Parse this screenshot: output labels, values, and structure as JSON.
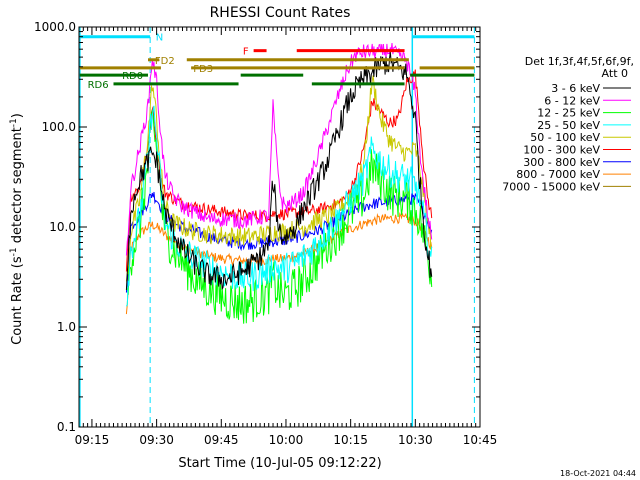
{
  "chart_data": {
    "type": "line",
    "title": "RHESSI Count Rates",
    "xlabel": "Start Time (10-Jul-05 09:12:22)",
    "ylabel_main": "Count Rate (s",
    "ylabel_sup1": "-1",
    "ylabel_mid": " detector segment",
    "ylabel_sup2": "-1",
    "ylabel_end": ")",
    "x_range_min": [
      0,
      93
    ],
    "y_scale": "log",
    "y_range": [
      0.1,
      1000
    ],
    "x_ticks": [
      {
        "min": 3,
        "label": "09:15"
      },
      {
        "min": 18,
        "label": "09:30"
      },
      {
        "min": 33,
        "label": "09:45"
      },
      {
        "min": 48,
        "label": "10:00"
      },
      {
        "min": 63,
        "label": "10:15"
      },
      {
        "min": 78,
        "label": "10:30"
      },
      {
        "min": 93,
        "label": "10:45"
      }
    ],
    "y_ticks": [
      {
        "val": 0.1,
        "label": "0.1"
      },
      {
        "val": 1,
        "label": "1.0"
      },
      {
        "val": 10,
        "label": "10.0"
      },
      {
        "val": 100,
        "label": "100.0"
      },
      {
        "val": 1000,
        "label": "1000.0"
      }
    ],
    "legend_title_1": "Det 1f,3f,4f,5f,6f,9f,",
    "legend_title_2": "Att 0",
    "legend_placement": "right",
    "series": [
      {
        "name": "3 - 6 keV",
        "color": "#000000",
        "times": [
          11,
          12,
          14,
          16,
          17,
          18,
          19,
          20,
          22,
          24,
          27,
          30,
          34,
          38,
          40,
          42,
          44,
          45,
          46,
          47,
          48,
          50,
          52,
          54,
          56,
          58,
          60,
          62,
          64,
          66,
          68,
          70,
          72,
          74,
          76,
          78,
          79,
          80,
          81,
          82
        ],
        "values": [
          2,
          15,
          30,
          45,
          55,
          45,
          25,
          14,
          9,
          6,
          4.2,
          3.3,
          3.0,
          3.6,
          4.2,
          5,
          6.5,
          30,
          12,
          8,
          8,
          10,
          15,
          22,
          32,
          50,
          90,
          160,
          240,
          300,
          350,
          420,
          440,
          390,
          340,
          120,
          30,
          10,
          5,
          3
        ]
      },
      {
        "name": "6 - 12 keV",
        "color": "#ff00ff",
        "times": [
          11,
          12,
          14,
          16,
          17,
          18,
          19,
          20,
          22,
          24,
          27,
          30,
          34,
          38,
          40,
          42,
          44,
          45,
          46,
          47,
          48,
          50,
          52,
          54,
          56,
          58,
          60,
          62,
          64,
          66,
          68,
          70,
          72,
          74,
          76,
          78,
          79,
          80,
          81,
          82
        ],
        "values": [
          5,
          24,
          60,
          160,
          500,
          280,
          80,
          32,
          20,
          16,
          14,
          12,
          12,
          11.5,
          12,
          12.5,
          13,
          160,
          40,
          18,
          16,
          18,
          22,
          35,
          60,
          110,
          200,
          350,
          520,
          560,
          570,
          560,
          600,
          520,
          460,
          220,
          60,
          25,
          12,
          7
        ]
      },
      {
        "name": "12 - 25 keV",
        "color": "#00ff00",
        "times": [
          11,
          12,
          14,
          16,
          17,
          18,
          19,
          20,
          22,
          24,
          27,
          30,
          34,
          38,
          40,
          42,
          44,
          45,
          46,
          47,
          48,
          50,
          52,
          54,
          56,
          58,
          60,
          62,
          64,
          66,
          68,
          70,
          72,
          74,
          76,
          78,
          79,
          80,
          81,
          82
        ],
        "values": [
          1.5,
          5,
          10,
          40,
          120,
          60,
          20,
          9,
          6,
          4.5,
          3,
          2.4,
          1.9,
          1.7,
          1.8,
          2,
          2.2,
          3,
          2.3,
          2.1,
          2.1,
          2.4,
          2.9,
          3.8,
          5.2,
          7,
          9,
          12,
          16,
          20,
          40,
          30,
          22,
          20,
          19,
          15,
          12,
          8,
          5,
          3
        ]
      },
      {
        "name": "25 - 50 keV",
        "color": "#00ffff",
        "times": [
          11,
          12,
          14,
          16,
          17,
          18,
          19,
          20,
          22,
          24,
          27,
          30,
          34,
          38,
          40,
          42,
          44,
          45,
          46,
          47,
          48,
          50,
          52,
          54,
          56,
          58,
          60,
          62,
          64,
          66,
          68,
          70,
          72,
          74,
          76,
          78,
          79,
          80,
          81,
          82
        ],
        "values": [
          1.8,
          6,
          12,
          50,
          170,
          80,
          25,
          11,
          7.5,
          6,
          4.8,
          4,
          3.4,
          3.1,
          3.2,
          3.4,
          3.7,
          4.2,
          3.9,
          3.8,
          3.9,
          4.3,
          5,
          6,
          7.5,
          9.5,
          12,
          16,
          22,
          30,
          60,
          45,
          36,
          32,
          30,
          26,
          20,
          12,
          7,
          4
        ]
      },
      {
        "name": "50 - 100 keV",
        "color": "#c8c800",
        "times": [
          11,
          12,
          14,
          16,
          17,
          18,
          19,
          20,
          22,
          24,
          27,
          30,
          34,
          38,
          40,
          42,
          44,
          45,
          46,
          47,
          48,
          50,
          52,
          54,
          56,
          58,
          60,
          62,
          64,
          66,
          68,
          70,
          72,
          74,
          76,
          78,
          79,
          80,
          81,
          82
        ],
        "values": [
          2.5,
          9,
          18,
          80,
          280,
          120,
          35,
          16,
          11,
          10,
          9,
          8.5,
          8.2,
          8,
          8,
          8.3,
          8.6,
          9,
          9,
          9,
          9,
          9.5,
          10,
          11,
          12,
          13,
          15,
          18,
          25,
          40,
          300,
          120,
          75,
          60,
          55,
          60,
          40,
          20,
          10,
          6
        ]
      },
      {
        "name": "100 - 300 keV",
        "color": "#ff0000",
        "times": [
          11,
          12,
          14,
          16,
          17,
          18,
          19,
          20,
          22,
          24,
          27,
          30,
          34,
          38,
          40,
          42,
          44,
          45,
          46,
          47,
          48,
          50,
          52,
          54,
          56,
          58,
          60,
          62,
          64,
          66,
          68,
          70,
          72,
          74,
          76,
          78,
          79,
          80,
          81,
          82
        ],
        "values": [
          4,
          20,
          25,
          60,
          170,
          70,
          30,
          22,
          19,
          17,
          16,
          15,
          14,
          13,
          13,
          13,
          13,
          13.5,
          13.5,
          13.5,
          13.5,
          14,
          14,
          14.5,
          15,
          16,
          17,
          20,
          30,
          60,
          180,
          140,
          110,
          120,
          280,
          340,
          120,
          40,
          18,
          12
        ]
      },
      {
        "name": "300 - 800 keV",
        "color": "#0000ff",
        "times": [
          11,
          12,
          14,
          16,
          17,
          18,
          19,
          20,
          22,
          24,
          27,
          30,
          34,
          38,
          40,
          42,
          44,
          45,
          46,
          47,
          48,
          50,
          52,
          54,
          56,
          58,
          60,
          62,
          64,
          66,
          68,
          70,
          72,
          74,
          76,
          78,
          79,
          80,
          81,
          82
        ],
        "values": [
          2,
          10,
          13,
          18,
          22,
          19,
          16,
          13,
          11,
          10,
          9,
          8,
          7.2,
          6.8,
          6.8,
          7,
          7,
          7.2,
          7.2,
          7.3,
          7.4,
          7.8,
          8.2,
          8.8,
          9.5,
          10.5,
          12,
          13,
          15,
          16,
          17,
          17.5,
          18,
          18.5,
          19,
          19,
          17,
          14,
          11,
          8
        ]
      },
      {
        "name": "800 - 7000 keV",
        "color": "#ff8000",
        "times": [
          11,
          12,
          14,
          16,
          17,
          18,
          19,
          20,
          22,
          24,
          27,
          30,
          34,
          38,
          40,
          42,
          44,
          45,
          46,
          47,
          48,
          50,
          52,
          54,
          56,
          58,
          60,
          62,
          64,
          66,
          68,
          70,
          72,
          74,
          76,
          78,
          79,
          80,
          81,
          82
        ],
        "values": [
          1.3,
          6,
          8.5,
          10,
          10.5,
          10,
          9.2,
          8.3,
          7.2,
          6.4,
          5.7,
          5.1,
          4.8,
          4.6,
          4.6,
          4.6,
          4.7,
          4.8,
          4.8,
          4.8,
          4.9,
          5.1,
          5.4,
          5.9,
          6.5,
          7.3,
          8.3,
          9.2,
          10,
          10.8,
          11.5,
          12,
          12.2,
          12.2,
          12,
          11.5,
          10.5,
          9,
          7.5,
          6
        ]
      },
      {
        "name": "7000 - 15000 keV",
        "color": "#a08000",
        "times": [],
        "values": []
      }
    ],
    "vlines_solid_min": [
      0.2,
      77.3
    ],
    "vlines_dashed_min": [
      16.5,
      91.7
    ],
    "bars": [
      {
        "label": "N",
        "color": "#00e0ff",
        "y": 800,
        "segments": [
          [
            0.2,
            16.5
          ],
          [
            77.3,
            91.7
          ]
        ],
        "label_at": 17.8
      },
      {
        "label": "F",
        "color": "#ff0000",
        "y": 580,
        "segments": [
          [
            40.5,
            43.5
          ],
          [
            50.5,
            75.5
          ]
        ],
        "label_at": 38
      },
      {
        "label": "FD2",
        "color": "#a08000",
        "y": 470,
        "segments": [
          [
            16,
            18.6
          ],
          [
            25,
            76.5
          ]
        ],
        "label_at": 17.6
      },
      {
        "label": "FD3",
        "color": "#a08000",
        "y": 390,
        "segments": [
          [
            0.2,
            19
          ],
          [
            26,
            75.5
          ],
          [
            79,
            91.7
          ]
        ],
        "label_at": 26.5
      },
      {
        "label": "RD0",
        "color": "#007000",
        "y": 330,
        "segments": [
          [
            0.2,
            16
          ],
          [
            37.5,
            52
          ],
          [
            76.8,
            91.7
          ]
        ],
        "label_at": 10
      },
      {
        "label": "RD6",
        "color": "#007000",
        "y": 270,
        "segments": [
          [
            8,
            37
          ],
          [
            54,
            75.5
          ]
        ],
        "label_at": 2
      }
    ]
  },
  "footer": {
    "timestamp": "18-Oct-2021 04:44"
  }
}
